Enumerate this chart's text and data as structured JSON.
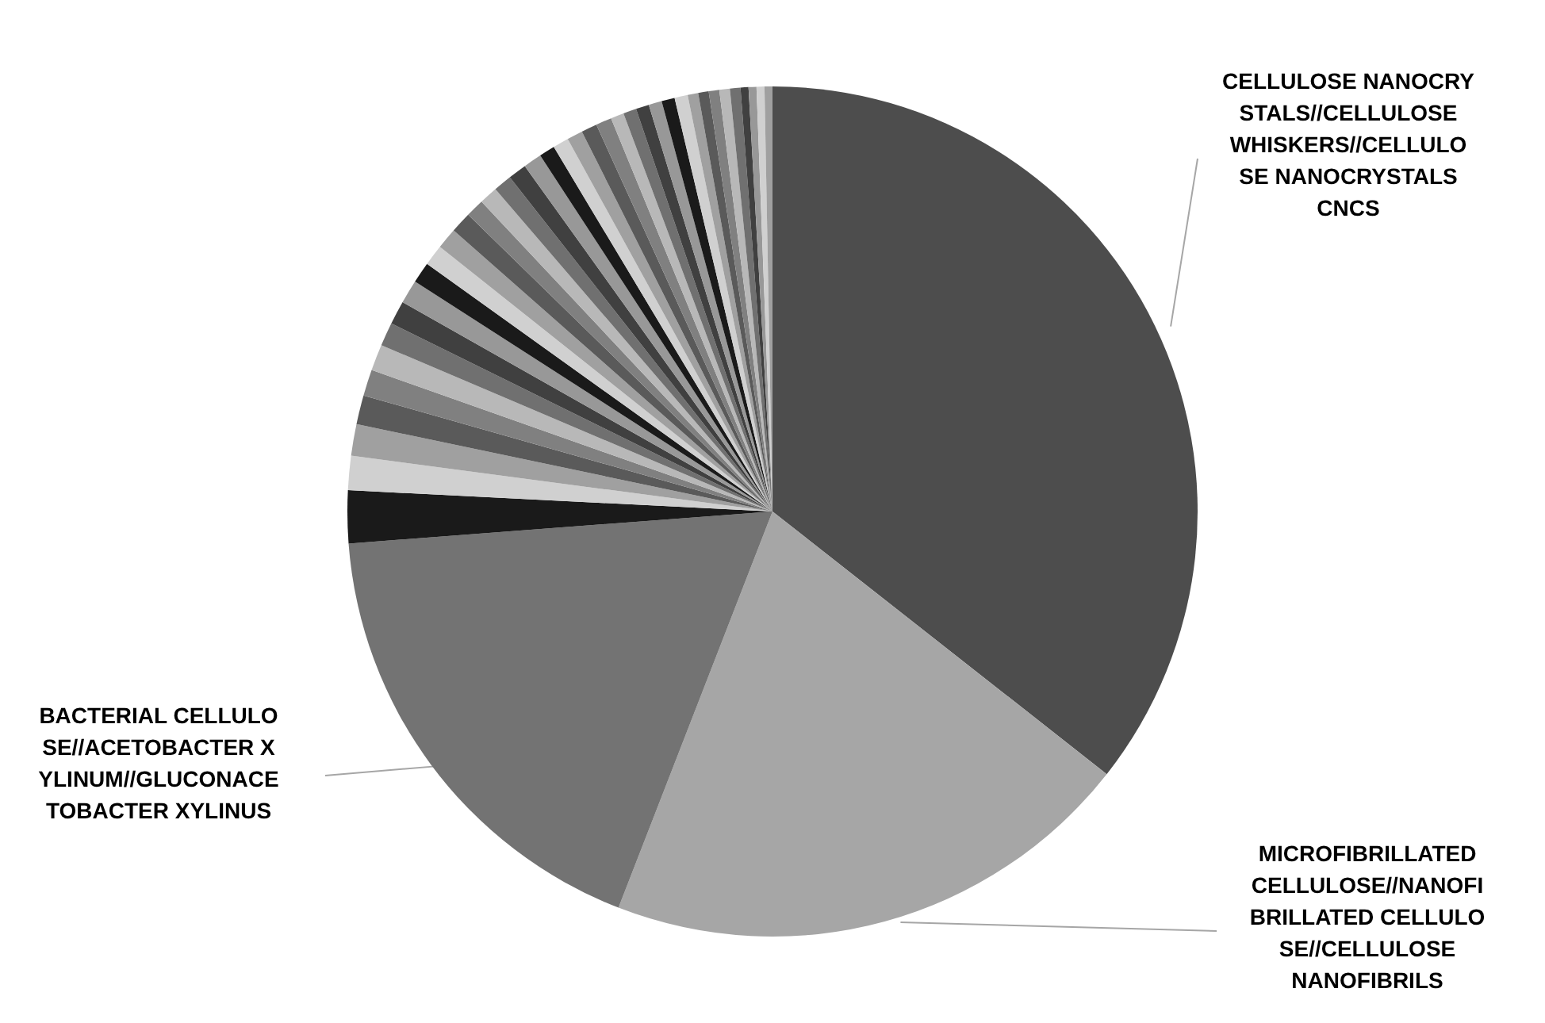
{
  "chart_data": {
    "type": "pie",
    "categories": [
      "CELLULOSE NANOCRYSTALS//CELLULOSE WHISKERS//CELLULOSE NANOCRYSTALS CNCS",
      "MICROFIBRILLATED CELLULOSE//NANOFIBRILLATED CELLULOSE//CELLULOSE NANOFIBRILS",
      "BACTERIAL CELLULOSE//ACETOBACTER XYLINUM//GLUCONACETOBACTER XYLINUS",
      null,
      null,
      null,
      null,
      null,
      null,
      null,
      null,
      null,
      null,
      null,
      null,
      null,
      null,
      null,
      null,
      null,
      null,
      null,
      null,
      null,
      null,
      null,
      null,
      null,
      null,
      null,
      null,
      null,
      null,
      null,
      null,
      null,
      null,
      null,
      null,
      null,
      null
    ],
    "values": [
      35.6,
      20.3,
      17.9,
      2.0,
      1.3,
      1.2,
      1.1,
      1.0,
      1.0,
      0.9,
      0.9,
      0.9,
      0.8,
      0.8,
      0.8,
      0.8,
      0.7,
      0.7,
      0.7,
      0.7,
      0.7,
      0.6,
      0.6,
      0.6,
      0.6,
      0.6,
      0.5,
      0.5,
      0.5,
      0.5,
      0.5,
      0.5,
      0.4,
      0.4,
      0.4,
      0.4,
      0.4,
      0.3,
      0.3,
      0.3,
      0.3
    ],
    "colors": [
      "#4d4d4d",
      "#a6a6a6",
      "#737373",
      "#1a1a1a",
      "#d0d0d0",
      "#a0a0a0",
      "#5a5a5a",
      "#808080",
      "#b8b8b8",
      "#707070",
      "#404040",
      "#989898",
      "#1a1a1a",
      "#d0d0d0",
      "#a0a0a0",
      "#5a5a5a",
      "#808080",
      "#b8b8b8",
      "#707070",
      "#404040",
      "#989898",
      "#1a1a1a",
      "#d0d0d0",
      "#a0a0a0",
      "#5a5a5a",
      "#808080",
      "#b8b8b8",
      "#707070",
      "#404040",
      "#989898",
      "#1a1a1a",
      "#d0d0d0",
      "#a0a0a0",
      "#5a5a5a",
      "#808080",
      "#b8b8b8",
      "#707070",
      "#404040",
      "#989898",
      "#d0d0d0",
      "#a0a0a0"
    ]
  }
}
